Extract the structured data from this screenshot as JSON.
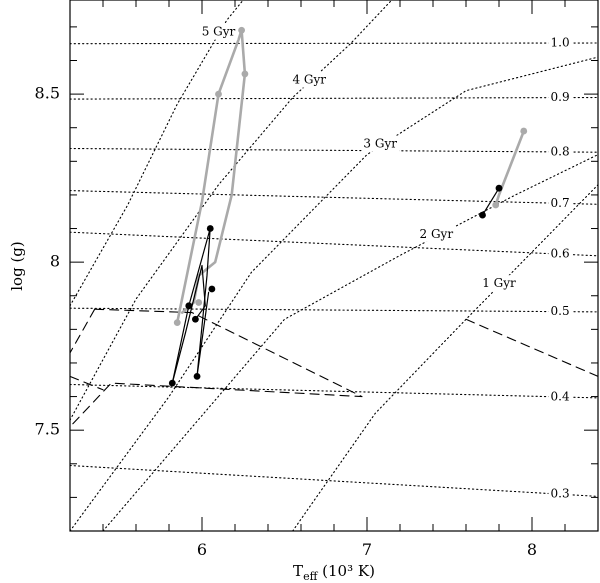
{
  "chart_data": {
    "type": "line",
    "title": "",
    "xlabel": {
      "main": "T",
      "sub": "eff",
      "rest": " (10³ K)"
    },
    "ylabel": "log (g)",
    "xlim": [
      5.2,
      8.4
    ],
    "ylim": [
      7.2,
      8.78
    ],
    "xticks": {
      "labeled": [
        6,
        7,
        8
      ],
      "minor_step": 0.2
    },
    "yticks": {
      "labeled": [
        7.5,
        8,
        8.5
      ],
      "minor_step": 0.1
    },
    "mass_tracks": [
      {
        "label": "1.0",
        "points": [
          [
            5.2,
            8.65
          ],
          [
            8.4,
            8.652
          ]
        ]
      },
      {
        "label": "0.9",
        "points": [
          [
            5.2,
            8.485
          ],
          [
            8.4,
            8.49
          ]
        ]
      },
      {
        "label": "0.8",
        "points": [
          [
            5.2,
            8.338
          ],
          [
            8.4,
            8.327
          ]
        ]
      },
      {
        "label": "0.7",
        "points": [
          [
            5.2,
            8.213
          ],
          [
            8.4,
            8.172
          ]
        ]
      },
      {
        "label": "0.6",
        "points": [
          [
            5.2,
            8.089
          ],
          [
            8.4,
            8.019
          ]
        ]
      },
      {
        "label": "0.5",
        "points": [
          [
            5.2,
            7.863
          ],
          [
            8.4,
            7.852
          ]
        ]
      },
      {
        "label": "0.4",
        "points": [
          [
            5.2,
            7.636
          ],
          [
            8.4,
            7.596
          ]
        ]
      },
      {
        "label": "0.3",
        "points": [
          [
            5.2,
            7.395
          ],
          [
            8.4,
            7.303
          ]
        ]
      }
    ],
    "isochrones": [
      {
        "label": "1 Gyr",
        "points": [
          [
            6.55,
            7.2
          ],
          [
            7.05,
            7.55
          ],
          [
            7.6,
            7.83
          ],
          [
            8.4,
            8.23
          ]
        ]
      },
      {
        "label": "2 Gyr",
        "points": [
          [
            5.4,
            7.2
          ],
          [
            6.5,
            7.83
          ],
          [
            7.2,
            8.02
          ],
          [
            7.9,
            8.2
          ],
          [
            8.4,
            8.32
          ]
        ]
      },
      {
        "label": "3 Gyr",
        "points": [
          [
            5.2,
            7.2
          ],
          [
            5.8,
            7.6
          ],
          [
            6.3,
            7.97
          ],
          [
            7.0,
            8.32
          ],
          [
            7.6,
            8.51
          ],
          [
            8.4,
            8.61
          ]
        ]
      },
      {
        "label": "4 Gyr",
        "points": [
          [
            5.2,
            7.53
          ],
          [
            5.6,
            7.89
          ],
          [
            6.1,
            8.23
          ],
          [
            6.55,
            8.49
          ],
          [
            6.9,
            8.65
          ],
          [
            7.15,
            8.78
          ]
        ]
      },
      {
        "label": "5 Gyr",
        "points": [
          [
            5.2,
            7.87
          ],
          [
            5.55,
            8.17
          ],
          [
            5.85,
            8.47
          ],
          [
            6.15,
            8.72
          ],
          [
            6.25,
            8.78
          ]
        ]
      }
    ],
    "dashed_lines": [
      {
        "points": [
          [
            5.35,
            7.86
          ],
          [
            5.2,
            7.73
          ]
        ]
      },
      {
        "points": [
          [
            5.35,
            7.86
          ],
          [
            5.94,
            7.85
          ],
          [
            6.97,
            7.6
          ],
          [
            5.45,
            7.64
          ],
          [
            5.2,
            7.51
          ]
        ]
      },
      {
        "points": [
          [
            5.2,
            7.66
          ],
          [
            5.4,
            7.62
          ]
        ]
      },
      {
        "points": [
          [
            7.6,
            7.83
          ],
          [
            8.4,
            7.66
          ]
        ]
      }
    ],
    "gray_tracks": [
      {
        "points": [
          [
            5.85,
            7.82
          ],
          [
            6.0,
            8.18
          ],
          [
            6.1,
            8.5
          ],
          [
            6.22,
            8.66
          ],
          [
            6.24,
            8.69
          ],
          [
            6.26,
            8.56
          ],
          [
            6.18,
            8.2
          ],
          [
            6.08,
            8.0
          ],
          [
            5.98,
            7.96
          ],
          [
            5.95,
            7.88
          ],
          [
            5.88,
            7.85
          ]
        ]
      },
      {
        "points": [
          [
            7.78,
            8.17
          ],
          [
            7.8,
            8.2
          ],
          [
            7.95,
            8.39
          ]
        ]
      }
    ],
    "gray_markers": [
      [
        5.85,
        7.82
      ],
      [
        6.1,
        8.5
      ],
      [
        6.24,
        8.69
      ],
      [
        6.26,
        8.56
      ],
      [
        5.98,
        7.88
      ],
      [
        7.78,
        8.17
      ],
      [
        7.95,
        8.39
      ]
    ],
    "black_tracks": [
      {
        "points": [
          [
            5.82,
            7.64
          ],
          [
            5.9,
            7.79
          ],
          [
            6.0,
            7.99
          ],
          [
            6.02,
            7.87
          ],
          [
            5.96,
            7.83
          ]
        ]
      },
      {
        "points": [
          [
            5.82,
            7.64
          ],
          [
            5.92,
            7.87
          ],
          [
            6.05,
            8.1
          ],
          [
            6.03,
            7.96
          ],
          [
            5.97,
            7.66
          ],
          [
            6.04,
            7.91
          ]
        ]
      },
      {
        "points": [
          [
            7.7,
            8.14
          ],
          [
            7.8,
            8.22
          ]
        ]
      }
    ],
    "black_markers": [
      [
        5.82,
        7.64
      ],
      [
        5.92,
        7.87
      ],
      [
        5.96,
        7.83
      ],
      [
        6.05,
        8.1
      ],
      [
        6.06,
        7.92
      ],
      [
        5.97,
        7.66
      ],
      [
        7.7,
        8.14
      ],
      [
        7.8,
        8.22
      ]
    ]
  }
}
